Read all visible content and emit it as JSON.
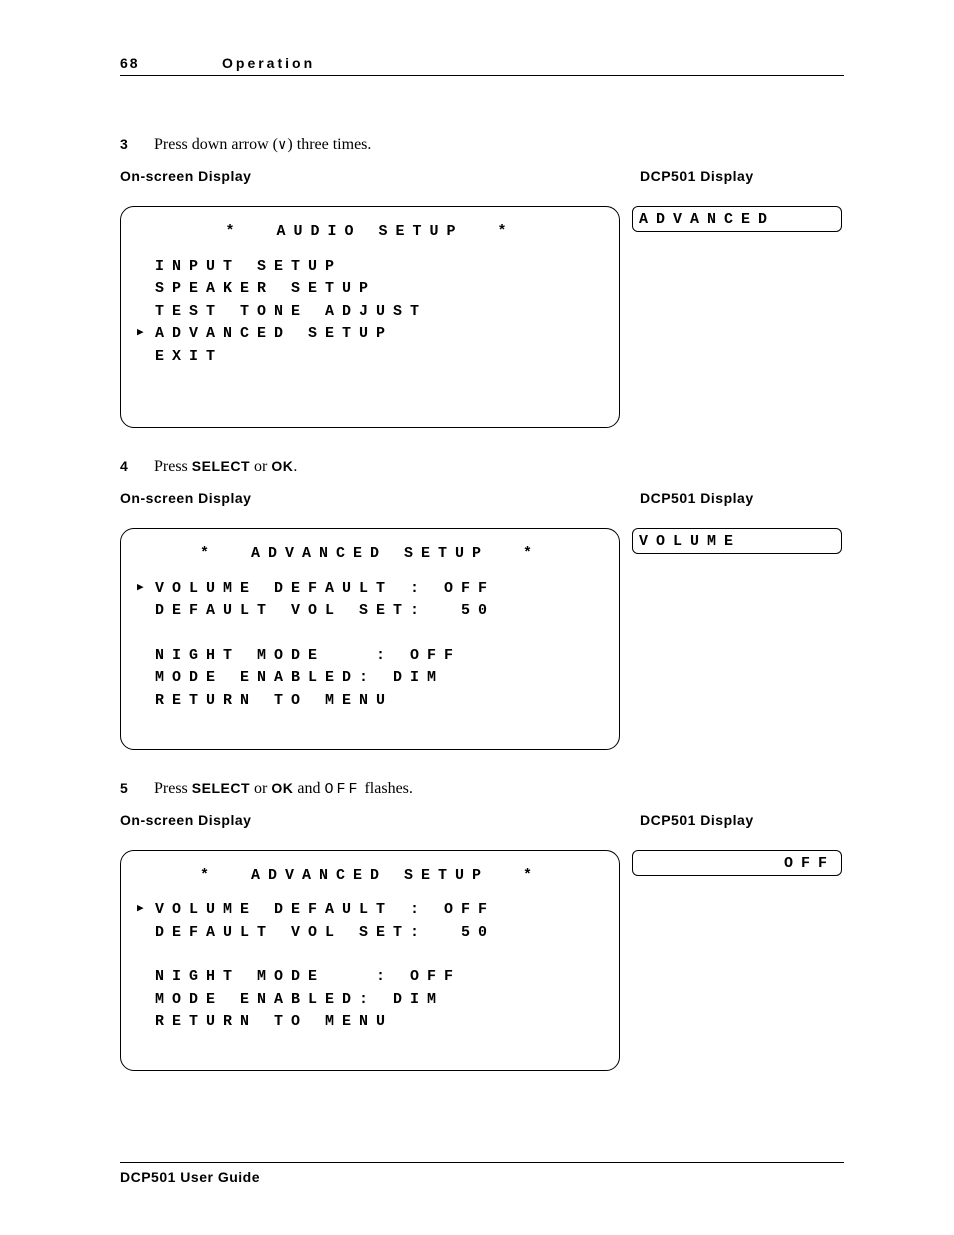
{
  "header": {
    "page_num": "68",
    "section": "Operation"
  },
  "labels": {
    "osd": "On-screen Display",
    "dcp": "DCP501 Display"
  },
  "step3": {
    "num": "3",
    "text_before": "Press down arrow (",
    "arrow": "∨",
    "text_after": ") three times.",
    "osd": {
      "title": "*  AUDIO SETUP  *",
      "lines": [
        {
          "t": "INPUT SETUP",
          "p": false
        },
        {
          "t": "SPEAKER SETUP",
          "p": false
        },
        {
          "t": "TEST TONE ADJUST",
          "p": false
        },
        {
          "t": "ADVANCED SETUP",
          "p": true
        },
        {
          "t": "EXIT",
          "p": false
        }
      ],
      "blank_after": 2
    },
    "dcp": "ADVANCED"
  },
  "step4": {
    "num": "4",
    "text_a": "Press ",
    "bold_a": "SELECT",
    "text_b": " or ",
    "bold_b": "OK",
    "text_c": ".",
    "osd": {
      "title": "*  ADVANCED SETUP  *",
      "lines": [
        {
          "t": "VOLUME DEFAULT : OFF",
          "p": true
        },
        {
          "t": "DEFAULT VOL SET:  50",
          "p": false
        }
      ],
      "lines2": [
        {
          "t": "NIGHT MODE   : OFF",
          "p": false
        },
        {
          "t": "MODE ENABLED: DIM",
          "p": false
        },
        {
          "t": "RETURN TO MENU",
          "p": false
        }
      ],
      "blank_after": 1
    },
    "dcp": "VOLUME"
  },
  "step5": {
    "num": "5",
    "text_a": "Press ",
    "bold_a": "SELECT",
    "text_b": " or ",
    "bold_b": "OK",
    "text_c": " and ",
    "mono": "OFF",
    "text_d": " flashes.",
    "osd": {
      "title": "*  ADVANCED SETUP  *",
      "lines": [
        {
          "t": "VOLUME DEFAULT : OFF",
          "p": true
        },
        {
          "t": "DEFAULT VOL SET:  50",
          "p": false
        }
      ],
      "lines2": [
        {
          "t": "NIGHT MODE   : OFF",
          "p": false
        },
        {
          "t": "MODE ENABLED: DIM",
          "p": false
        },
        {
          "t": "RETURN TO MENU",
          "p": false
        }
      ],
      "blank_after": 1
    },
    "dcp": "OFF"
  },
  "footer": "DCP501 User Guide"
}
